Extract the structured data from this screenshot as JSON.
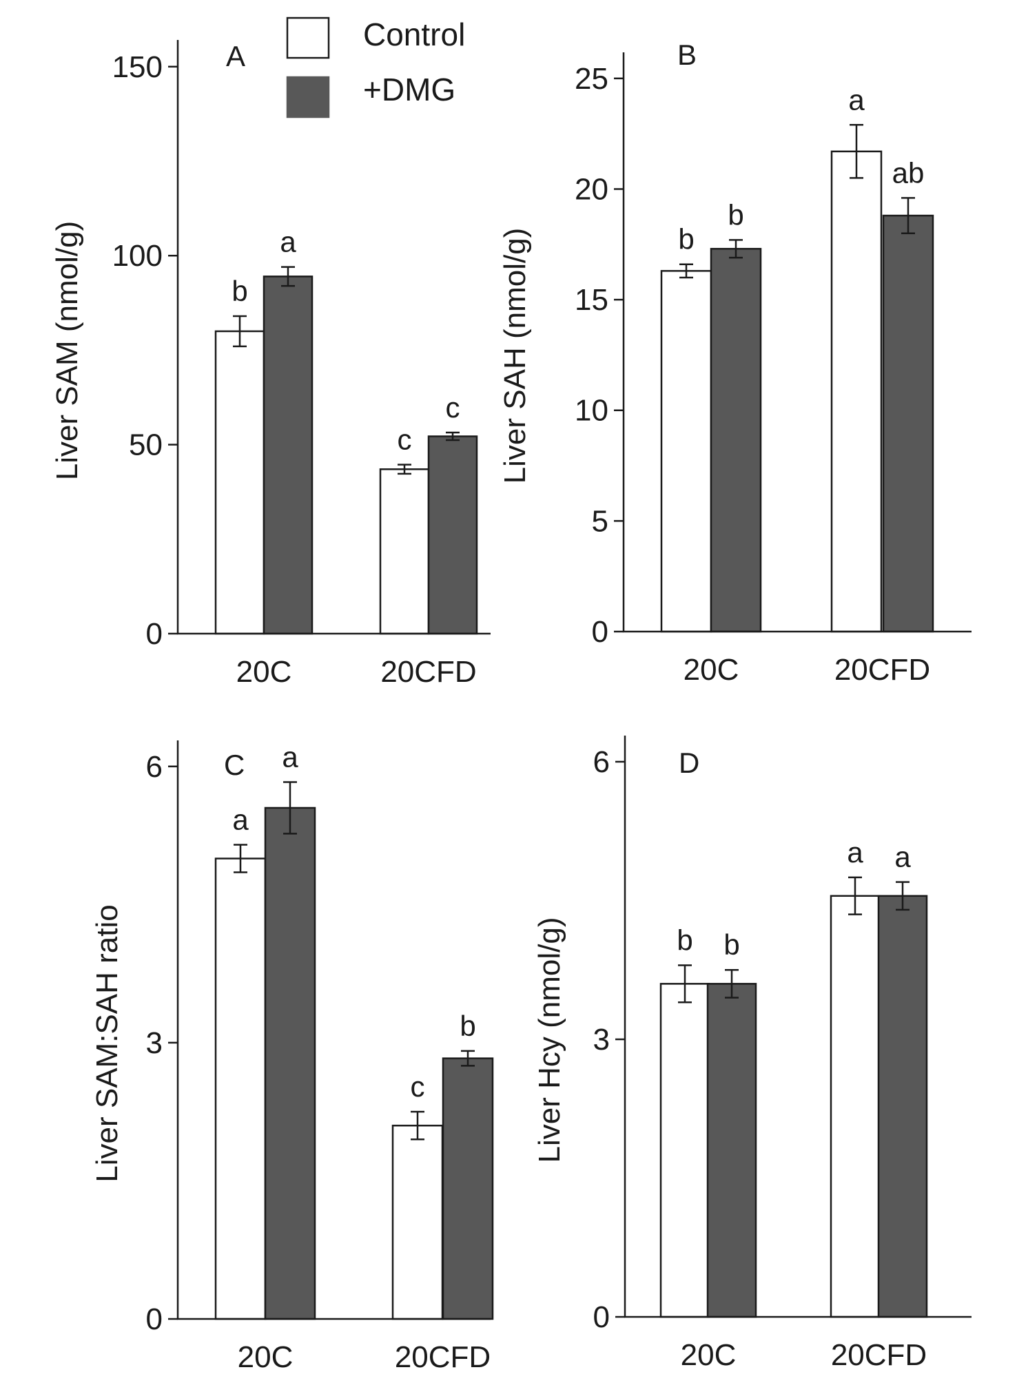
{
  "legend": {
    "items": [
      {
        "label": "Control",
        "color": "#ffffff"
      },
      {
        "label": "+DMG",
        "color": "#585858"
      }
    ]
  },
  "chart_data": [
    {
      "panel": "A",
      "type": "bar",
      "categories": [
        "20C",
        "20CFD"
      ],
      "ylabel": "Liver SAM (nmol/g)",
      "ylim": [
        0,
        150
      ],
      "yticks": [
        0,
        50,
        100,
        150
      ],
      "series": [
        {
          "name": "Control",
          "values": [
            80,
            43.5
          ],
          "errors": [
            4,
            1.2
          ],
          "letters": [
            "b",
            "c"
          ]
        },
        {
          "name": "+DMG",
          "values": [
            94.5,
            52.2
          ],
          "errors": [
            2.5,
            1.0
          ],
          "letters": [
            "a",
            "c"
          ]
        }
      ]
    },
    {
      "panel": "B",
      "type": "bar",
      "categories": [
        "20C",
        "20CFD"
      ],
      "ylabel": "Liver SAH (nmol/g)",
      "ylim": [
        0,
        25
      ],
      "yticks": [
        0,
        5,
        10,
        15,
        20,
        25
      ],
      "series": [
        {
          "name": "Control",
          "values": [
            16.3,
            21.7
          ],
          "errors": [
            0.3,
            1.2
          ],
          "letters": [
            "b",
            "a"
          ]
        },
        {
          "name": "+DMG",
          "values": [
            17.3,
            18.8
          ],
          "errors": [
            0.4,
            0.8
          ],
          "letters": [
            "b",
            "ab"
          ]
        }
      ]
    },
    {
      "panel": "C",
      "type": "bar",
      "categories": [
        "20C",
        "20CFD"
      ],
      "ylabel": "Liver SAM:SAH ratio",
      "ylim": [
        0,
        6
      ],
      "yticks": [
        0,
        3,
        6
      ],
      "series": [
        {
          "name": "Control",
          "values": [
            5.0,
            2.1
          ],
          "errors": [
            0.15,
            0.15
          ],
          "letters": [
            "a",
            "c"
          ]
        },
        {
          "name": "+DMG",
          "values": [
            5.55,
            2.83
          ],
          "errors": [
            0.28,
            0.08
          ],
          "letters": [
            "a",
            "b"
          ]
        }
      ]
    },
    {
      "panel": "D",
      "type": "bar",
      "categories": [
        "20C",
        "20CFD"
      ],
      "ylabel": "Liver Hcy (nmol/g)",
      "ylim": [
        0,
        6
      ],
      "yticks": [
        0,
        3,
        6
      ],
      "series": [
        {
          "name": "Control",
          "values": [
            3.6,
            4.55
          ],
          "errors": [
            0.2,
            0.2
          ],
          "letters": [
            "b",
            "a"
          ]
        },
        {
          "name": "+DMG",
          "values": [
            3.6,
            4.55
          ],
          "errors": [
            0.15,
            0.15
          ],
          "letters": [
            "b",
            "a"
          ]
        }
      ]
    }
  ]
}
